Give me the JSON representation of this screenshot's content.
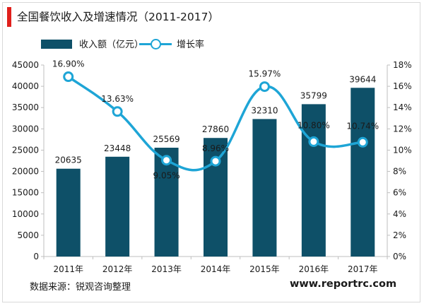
{
  "title": "全国餐饮收入及增速情况（2011-2017）",
  "legend": {
    "bar_label": "收入额（亿元）",
    "line_label": "增长率"
  },
  "source": "数据来源：锐观咨询整理",
  "website": "www.reportrc.com",
  "colors": {
    "bar": "#0e5068",
    "line": "#1ea5d6",
    "accent": "#e0201c"
  },
  "chart_data": {
    "type": "bar",
    "title": "全国餐饮收入及增速情况（2011-2017）",
    "categories": [
      "2011年",
      "2012年",
      "2013年",
      "2014年",
      "2015年",
      "2016年",
      "2017年"
    ],
    "series": [
      {
        "name": "收入额（亿元）",
        "type": "bar",
        "axis": "left",
        "values": [
          20635,
          23448,
          25569,
          27860,
          32310,
          35799,
          39644
        ]
      },
      {
        "name": "增长率",
        "type": "line",
        "axis": "right",
        "values": [
          16.9,
          13.63,
          9.05,
          8.96,
          15.97,
          10.8,
          10.74
        ],
        "labels": [
          "16.90%",
          "13.63%",
          "9.05%",
          "8.96%",
          "15.97%",
          "10.80%",
          "10.74%"
        ]
      }
    ],
    "ylim": [
      0,
      45000
    ],
    "yticks": [
      "0",
      "5000",
      "10000",
      "15000",
      "20000",
      "25000",
      "30000",
      "35000",
      "40000",
      "45000"
    ],
    "y2lim": [
      0,
      18
    ],
    "y2ticks": [
      "0%",
      "2%",
      "4%",
      "6%",
      "8%",
      "10%",
      "12%",
      "14%",
      "16%",
      "18%"
    ],
    "grid": false,
    "legend_position": "top-left"
  }
}
